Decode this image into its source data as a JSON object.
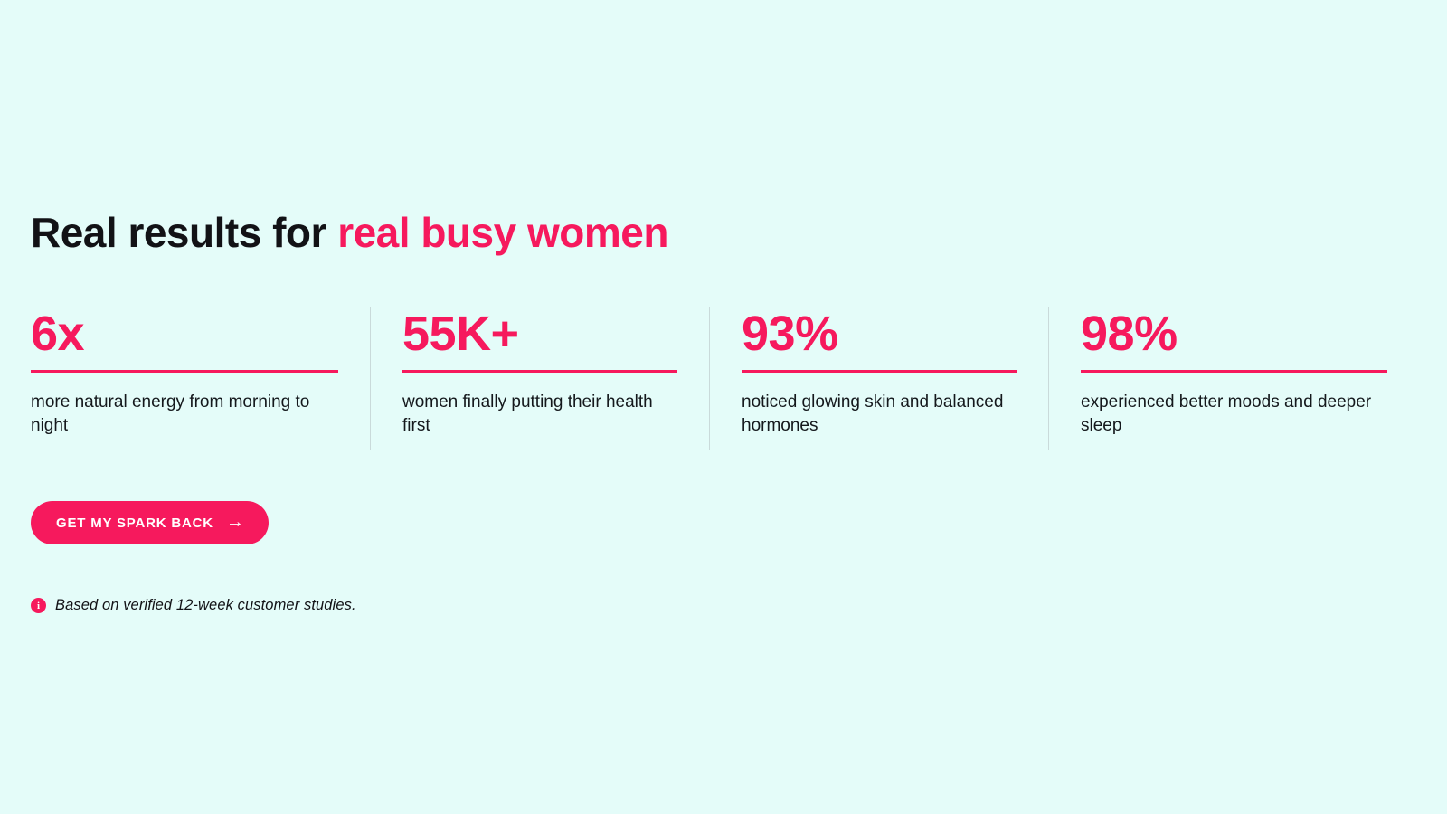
{
  "page": {
    "background_color": "#e4fcf9",
    "accent_color": "#f6195d",
    "text_color": "#121216",
    "divider_color": "#c9dada"
  },
  "heading": {
    "prefix": "Real results for ",
    "highlight": "real busy women"
  },
  "stats": [
    {
      "value": "6x",
      "description": "more natural energy from morning to night"
    },
    {
      "value": "55K+",
      "description": "women finally putting their health first"
    },
    {
      "value": "93%",
      "description": "noticed glowing skin and balanced hormones"
    },
    {
      "value": "98%",
      "description": "experienced better moods and deeper sleep"
    }
  ],
  "cta": {
    "label": "GET MY SPARK BACK",
    "arrow_glyph": "→"
  },
  "footnote": {
    "icon_glyph": "i",
    "text": "Based on verified 12-week customer studies."
  }
}
